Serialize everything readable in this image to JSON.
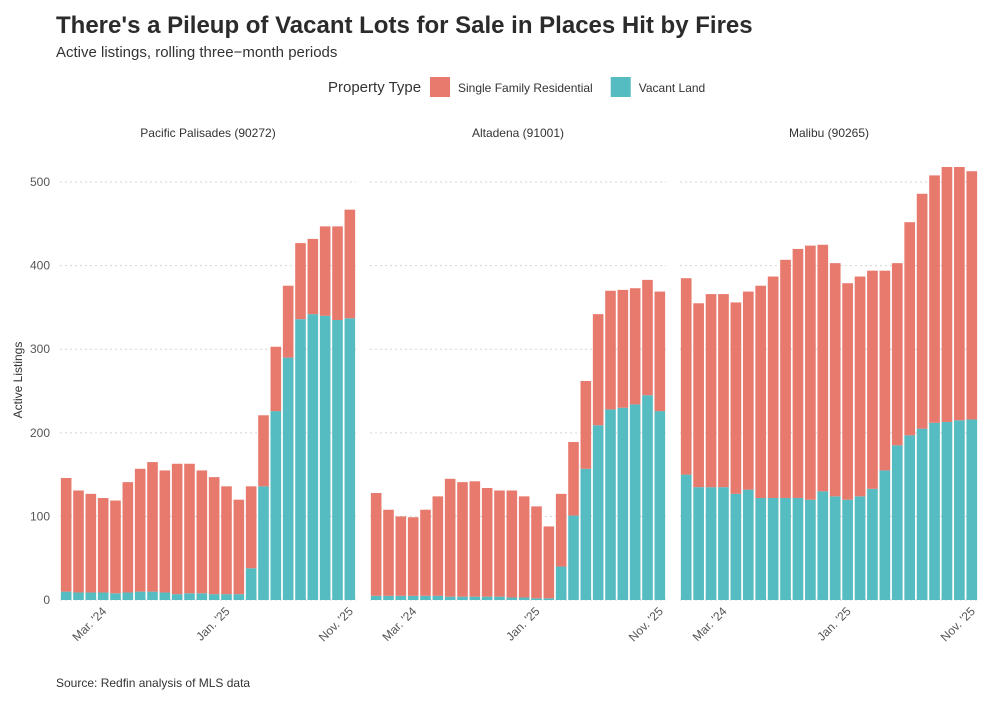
{
  "chart_data": {
    "type": "stacked-bar",
    "title": "There's a Pileup of Vacant Lots for Sale in Places Hit by Fires",
    "subtitle": "Active listings, rolling three−month periods",
    "legend_title": "Property Type",
    "ylabel": "Active Listings",
    "source": "Source: Redfin analysis of MLS data",
    "ylim": [
      0,
      530
    ],
    "yticks": [
      0,
      100,
      200,
      300,
      400,
      500
    ],
    "grid": true,
    "categories": [
      null,
      null,
      null,
      "Mar. '24",
      null,
      null,
      null,
      null,
      null,
      null,
      null,
      null,
      null,
      "Jan. '25",
      null,
      null,
      null,
      null,
      null,
      null,
      null,
      null,
      null,
      "Nov. '25"
    ],
    "series_meta": [
      {
        "name": "Single Family Residential",
        "color": "#e8796d"
      },
      {
        "name": "Vacant Land",
        "color": "#55bcc2"
      }
    ],
    "facets": [
      {
        "title": "Pacific Palisades (90272)",
        "values": [
          [
            136,
            122,
            118,
            113,
            111,
            132,
            147,
            155,
            146,
            156,
            155,
            147,
            140,
            129,
            113,
            98,
            85,
            77,
            86,
            91,
            90,
            107,
            112,
            130
          ],
          [
            10,
            9,
            9,
            9,
            8,
            9,
            10,
            10,
            9,
            7,
            8,
            8,
            7,
            7,
            7,
            38,
            136,
            226,
            290,
            336,
            342,
            340,
            335,
            337
          ]
        ]
      },
      {
        "title": "Altadena (91001)",
        "values": [
          [
            123,
            103,
            95,
            94,
            103,
            119,
            141,
            137,
            138,
            130,
            127,
            128,
            121,
            110,
            86,
            87,
            88,
            105,
            133,
            142,
            141,
            139,
            138,
            143
          ],
          [
            5,
            5,
            5,
            5,
            5,
            5,
            4,
            4,
            4,
            4,
            4,
            3,
            3,
            2,
            2,
            40,
            101,
            157,
            209,
            228,
            230,
            234,
            245,
            226
          ]
        ]
      },
      {
        "title": "Malibu (90265)",
        "values": [
          [
            235,
            220,
            231,
            231,
            229,
            237,
            254,
            265,
            285,
            298,
            304,
            295,
            279,
            259,
            263,
            261,
            239,
            218,
            255,
            281,
            296,
            305,
            303,
            297
          ],
          [
            150,
            135,
            135,
            135,
            127,
            132,
            122,
            122,
            122,
            122,
            120,
            130,
            124,
            120,
            124,
            133,
            155,
            185,
            197,
            205,
            212,
            213,
            215,
            216
          ]
        ]
      }
    ]
  }
}
